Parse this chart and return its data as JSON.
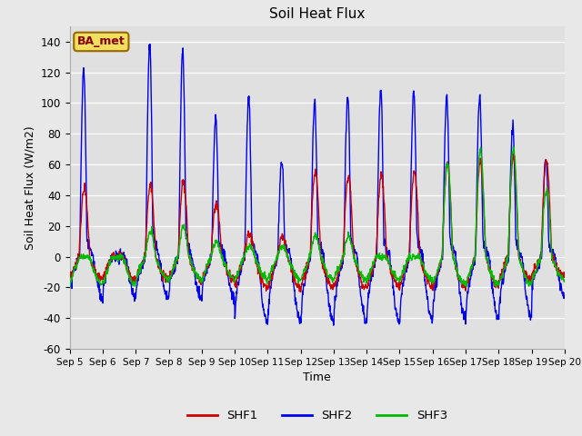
{
  "title": "Soil Heat Flux",
  "ylabel": "Soil Heat Flux (W/m2)",
  "xlabel": "Time",
  "ylim": [
    -60,
    150
  ],
  "yticks": [
    -60,
    -40,
    -20,
    0,
    20,
    40,
    60,
    80,
    100,
    120,
    140
  ],
  "background_color": "#e8e8e8",
  "plot_bg_color": "#e0e0e0",
  "legend_label": "BA_met",
  "line_colors": {
    "SHF1": "#cc0000",
    "SHF2": "#0000ee",
    "SHF3": "#00bb00"
  },
  "line_width": 1.0,
  "n_days": 15,
  "start_day": 5,
  "points_per_day": 96,
  "font_size": 9,
  "title_font_size": 11,
  "figsize": [
    6.4,
    4.8
  ],
  "dpi": 100
}
